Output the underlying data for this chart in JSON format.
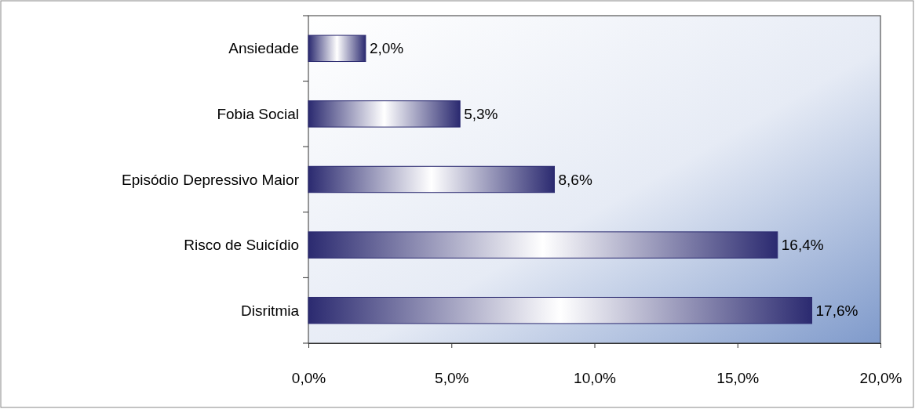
{
  "chart_data": {
    "type": "bar",
    "orientation": "horizontal",
    "categories": [
      "Ansiedade",
      "Fobia Social",
      "Episódio Depressivo Maior",
      "Risco de Suicídio",
      "Disritmia"
    ],
    "values": [
      2.0,
      5.3,
      8.6,
      16.4,
      17.6
    ],
    "value_labels": [
      "2,0%",
      "5,3%",
      "8,6%",
      "16,4%",
      "17,6%"
    ],
    "color": "#2b2a70",
    "xlim": [
      0,
      20
    ],
    "xticks": [
      {
        "value": 0,
        "label": "0,0%"
      },
      {
        "value": 5,
        "label": "5,0%"
      },
      {
        "value": 10,
        "label": "10,0%"
      },
      {
        "value": 15,
        "label": "15,0%"
      },
      {
        "value": 20,
        "label": "20,0%"
      }
    ],
    "grid": false
  }
}
